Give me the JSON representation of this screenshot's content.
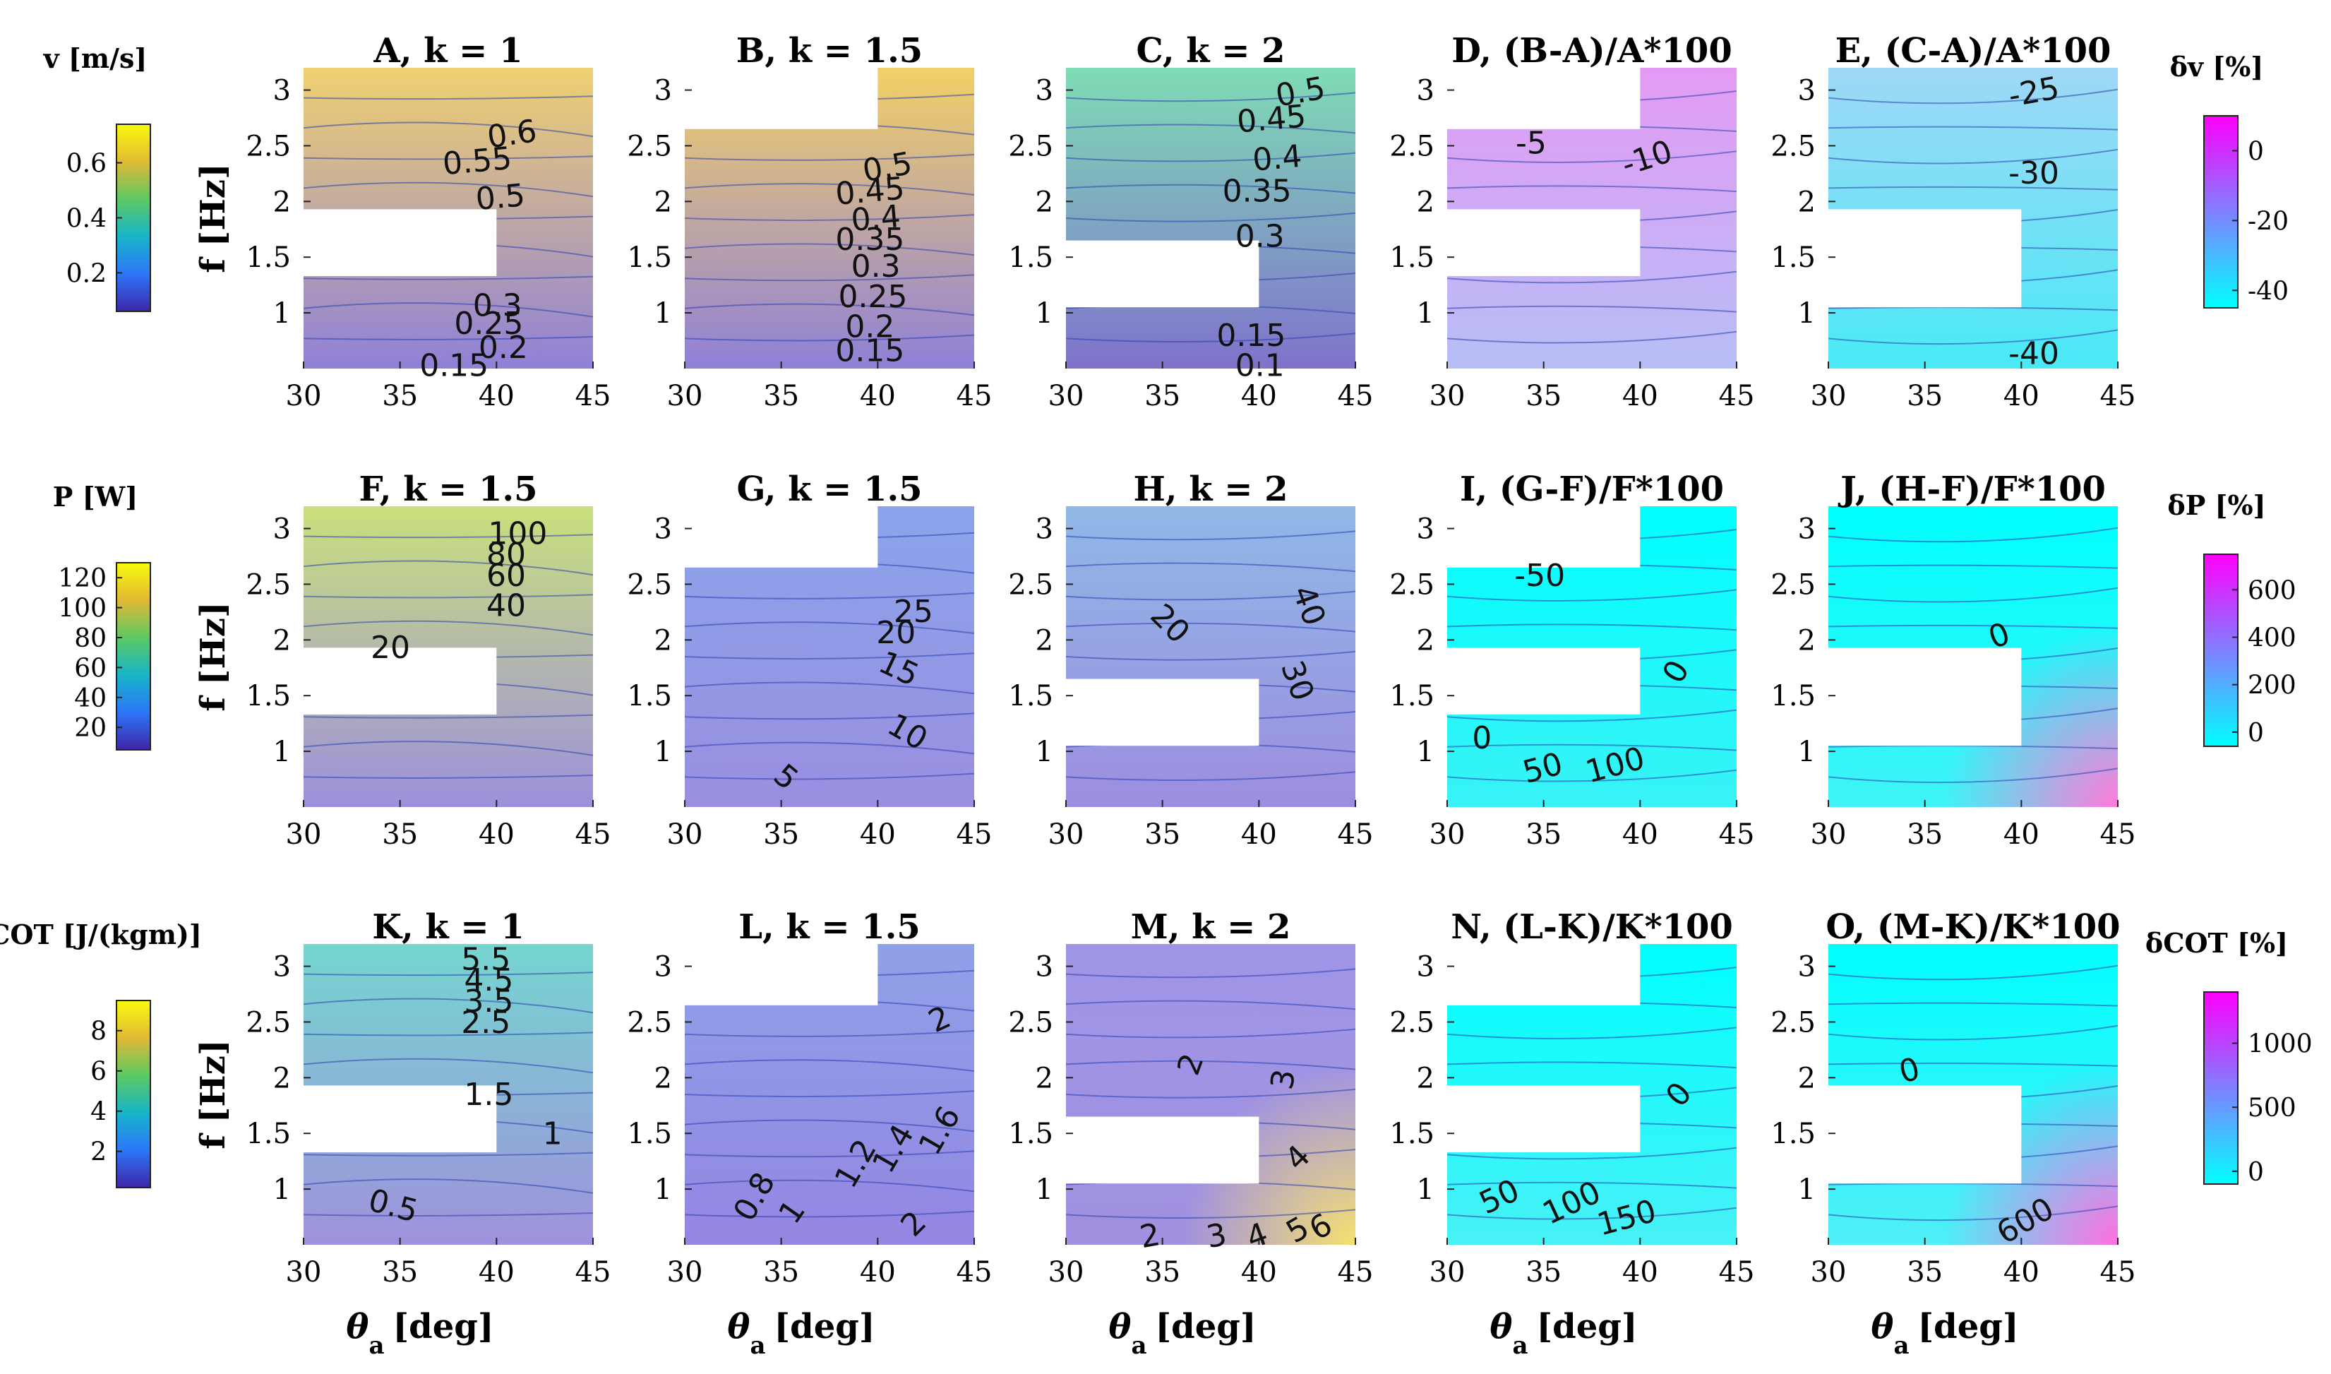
{
  "chart_data": {
    "type": "contour_grid",
    "xlabel": "θa [deg]",
    "xlabel_main": "θ",
    "xlabel_sub": "a",
    "xlabel_unit": "[deg]",
    "ylabel": "f [Hz]",
    "xlim": [
      30,
      45
    ],
    "ylim": [
      0.5,
      3.2
    ],
    "xticks": [
      "30",
      "35",
      "40",
      "45"
    ],
    "yticks": [
      "1",
      "1.5",
      "2",
      "2.5",
      "3"
    ],
    "colors": {
      "parula": [
        "#3e26a8",
        "#2d76f9",
        "#17b5c8",
        "#5dc963",
        "#e1b934",
        "#f9fb0e"
      ],
      "cool": [
        "#00ffff",
        "#ff00ff"
      ]
    },
    "rows": [
      {
        "colorbar": {
          "label": "v [m/s]",
          "ticks": [
            "0.6",
            "0.4",
            "0.2"
          ],
          "tick_values": [
            0.6,
            0.4,
            0.2
          ],
          "range": [
            0.06,
            0.74
          ],
          "map": "parula"
        },
        "delta_colorbar": {
          "label": "δv [%]",
          "ticks": [
            "0",
            "-20",
            "-40"
          ],
          "tick_values": [
            0,
            -20,
            -40
          ],
          "range": [
            -45,
            10
          ],
          "map": "cool"
        },
        "panels": [
          {
            "title": "A, k = 1",
            "missing": {
              "x": [
                30,
                40
              ],
              "y": [
                1.33,
                1.93
              ]
            },
            "contour_labels": [
              "0.6",
              "0.55",
              "0.5",
              "0.3",
              "0.25",
              "0.2",
              "0.15"
            ]
          },
          {
            "title": "B, k = 1.5",
            "missing": {
              "x": [
                30,
                40
              ],
              "y": [
                2.65,
                3.2
              ]
            },
            "contour_labels": [
              "0.5",
              "0.45",
              "0.4",
              "0.35",
              "0.3",
              "0.25",
              "0.2",
              "0.15"
            ]
          },
          {
            "title": "C, k = 2",
            "missing": {
              "x": [
                30,
                40
              ],
              "y": [
                1.05,
                1.65
              ]
            },
            "contour_labels": [
              "0.5",
              "0.45",
              "0.4",
              "0.35",
              "0.3",
              "0.15",
              "0.1"
            ]
          },
          {
            "title": "D, (B-A)/A*100",
            "missing_list": [
              {
                "x": [
                  30,
                  40
                ],
                "y": [
                  2.65,
                  3.2
                ]
              },
              {
                "x": [
                  30,
                  40
                ],
                "y": [
                  1.33,
                  1.93
                ]
              }
            ],
            "contour_labels": [
              "-5",
              "-10"
            ]
          },
          {
            "title": "E, (C-A)/A*100",
            "missing": {
              "x": [
                30,
                40
              ],
              "y": [
                1.05,
                1.93
              ]
            },
            "contour_labels": [
              "-25",
              "-30",
              "-40"
            ]
          }
        ]
      },
      {
        "colorbar": {
          "label": "P [W]",
          "ticks": [
            "120",
            "100",
            "80",
            "60",
            "40",
            "20"
          ],
          "tick_values": [
            120,
            100,
            80,
            60,
            40,
            20
          ],
          "range": [
            5,
            130
          ],
          "map": "parula"
        },
        "delta_colorbar": {
          "label": "δP [%]",
          "ticks": [
            "600",
            "400",
            "200",
            "0"
          ],
          "tick_values": [
            600,
            400,
            200,
            0
          ],
          "range": [
            -60,
            750
          ],
          "map": "cool"
        },
        "panels": [
          {
            "title": "F, k = 1.5",
            "missing": {
              "x": [
                30,
                40
              ],
              "y": [
                1.33,
                1.93
              ]
            },
            "contour_labels": [
              "100",
              "80",
              "60",
              "40",
              "20"
            ]
          },
          {
            "title": "G, k = 1.5",
            "missing": {
              "x": [
                30,
                40
              ],
              "y": [
                2.65,
                3.2
              ]
            },
            "contour_labels": [
              "25",
              "20",
              "15",
              "10",
              "5"
            ]
          },
          {
            "title": "H, k = 2",
            "missing": {
              "x": [
                30,
                40
              ],
              "y": [
                1.05,
                1.65
              ]
            },
            "contour_labels": [
              "20",
              "40",
              "30"
            ]
          },
          {
            "title": "I, (G-F)/F*100",
            "missing_list": [
              {
                "x": [
                  30,
                  40
                ],
                "y": [
                  2.65,
                  3.2
                ]
              },
              {
                "x": [
                  30,
                  40
                ],
                "y": [
                  1.33,
                  1.93
                ]
              }
            ],
            "contour_labels": [
              "-50",
              "0",
              "0",
              "50",
              "100"
            ]
          },
          {
            "title": "J, (H-F)/F*100",
            "missing": {
              "x": [
                30,
                40
              ],
              "y": [
                1.05,
                1.93
              ]
            },
            "contour_labels": [
              "0"
            ]
          }
        ]
      },
      {
        "colorbar": {
          "label": "COT [J/(kgm)]",
          "ticks": [
            "8",
            "6",
            "4",
            "2"
          ],
          "tick_values": [
            8,
            6,
            4,
            2
          ],
          "range": [
            0.2,
            9.5
          ],
          "map": "parula"
        },
        "delta_colorbar": {
          "label": "δCOT [%]",
          "ticks": [
            "1000",
            "500",
            "0"
          ],
          "tick_values": [
            1000,
            500,
            0
          ],
          "range": [
            -100,
            1400
          ],
          "map": "cool"
        },
        "panels": [
          {
            "title": "K, k = 1",
            "missing": {
              "x": [
                30,
                40
              ],
              "y": [
                1.33,
                1.93
              ]
            },
            "contour_labels": [
              "5.5",
              "4.5",
              "3.5",
              "2.5",
              "1.5",
              "1",
              "0.5"
            ]
          },
          {
            "title": "L, k = 1.5",
            "missing": {
              "x": [
                30,
                40
              ],
              "y": [
                2.65,
                3.2
              ]
            },
            "contour_labels": [
              "2",
              "0.8",
              "1",
              "1.2",
              "1.4",
              "1.6",
              "2"
            ]
          },
          {
            "title": "M, k = 2",
            "missing": {
              "x": [
                30,
                40
              ],
              "y": [
                1.05,
                1.65
              ]
            },
            "contour_labels": [
              "2",
              "3",
              "4",
              "2",
              "3",
              "4",
              "5",
              "6"
            ]
          },
          {
            "title": "N, (L-K)/K*100",
            "missing_list": [
              {
                "x": [
                  30,
                  40
                ],
                "y": [
                  2.65,
                  3.2
                ]
              },
              {
                "x": [
                  30,
                  40
                ],
                "y": [
                  1.33,
                  1.93
                ]
              }
            ],
            "contour_labels": [
              "0",
              "50",
              "100",
              "150"
            ]
          },
          {
            "title": "O, (M-K)/K*100",
            "missing": {
              "x": [
                30,
                40
              ],
              "y": [
                1.05,
                1.93
              ]
            },
            "contour_labels": [
              "0",
              "600"
            ]
          }
        ]
      }
    ]
  }
}
